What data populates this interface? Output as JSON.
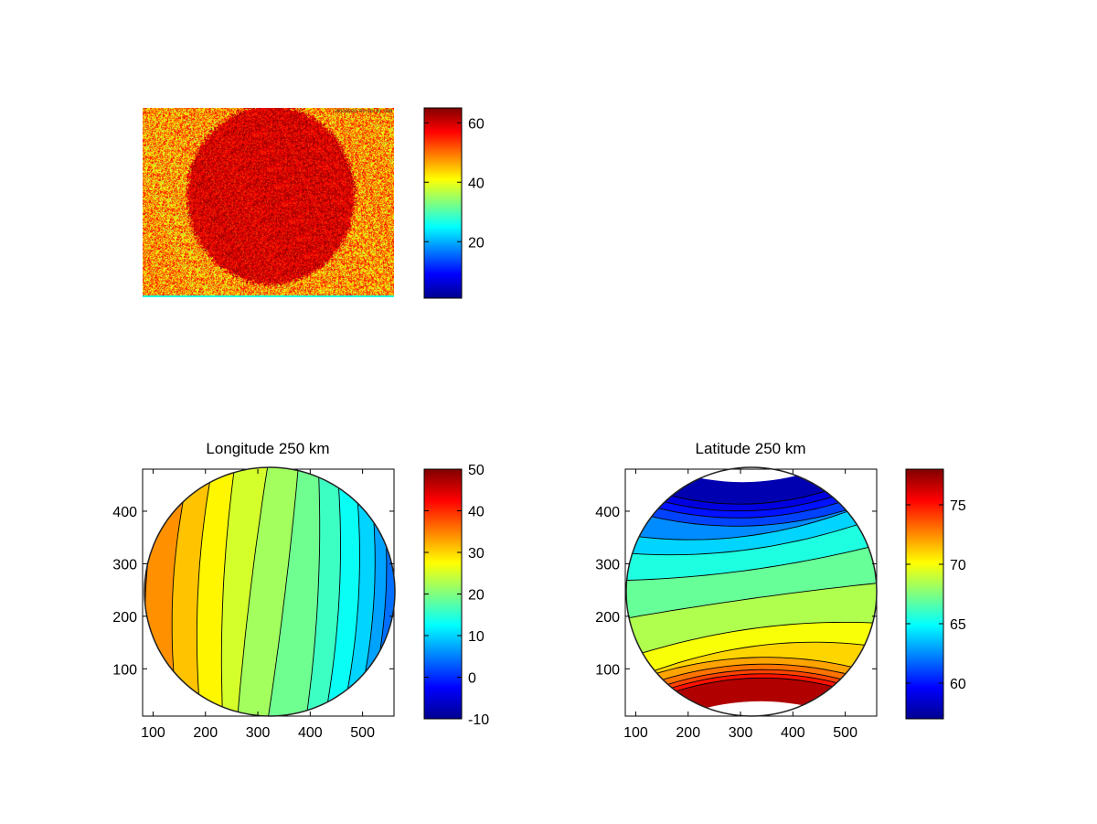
{
  "chart_data": [
    {
      "type": "heatmap",
      "title": "",
      "image_text": "20130220 03:10:02 CDM",
      "axes_visible": false,
      "colormap": "jet",
      "colorbar": {
        "range": [
          1,
          65
        ],
        "ticks": [
          20,
          40,
          60
        ]
      }
    },
    {
      "type": "heatmap",
      "title": "Longitude 250 km",
      "xlim": [
        80,
        560
      ],
      "ylim": [
        10,
        480
      ],
      "xticks": [
        100,
        200,
        300,
        400,
        500
      ],
      "yticks": [
        100,
        200,
        300,
        400
      ],
      "colormap": "jet",
      "contours": true,
      "value_range_shown": [
        0,
        36
      ],
      "colorbar": {
        "range": [
          -10,
          50
        ],
        "ticks": [
          -10,
          0,
          10,
          20,
          30,
          40,
          50
        ]
      }
    },
    {
      "type": "heatmap",
      "title": "Latitude 250 km",
      "xlim": [
        80,
        560
      ],
      "ylim": [
        10,
        480
      ],
      "xticks": [
        100,
        200,
        300,
        400,
        500
      ],
      "yticks": [
        100,
        200,
        300,
        400
      ],
      "colormap": "jet",
      "contours": true,
      "value_range_shown": [
        58,
        77
      ],
      "colorbar": {
        "range": [
          57,
          78
        ],
        "ticks": [
          60,
          65,
          70,
          75
        ]
      }
    }
  ]
}
